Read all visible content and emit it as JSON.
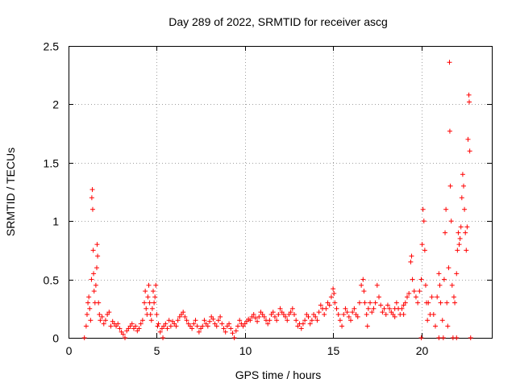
{
  "chart_data": {
    "type": "scatter",
    "title": "Day 289 of 2022, SRMTID for receiver ascg",
    "xlabel": "GPS time / hours",
    "ylabel": "SRMTID / TECUs",
    "xlim": [
      0,
      24
    ],
    "ylim": [
      0,
      2.5
    ],
    "xticks": [
      0,
      5,
      10,
      15,
      20
    ],
    "yticks": [
      0,
      0.5,
      1,
      1.5,
      2,
      2.5
    ],
    "xtick_labels": [
      "0",
      "5",
      "10",
      "15",
      "20"
    ],
    "ytick_labels": [
      "0",
      "0.5",
      "1",
      "1.5",
      "2",
      "2.5"
    ],
    "grid": true,
    "marker": "+",
    "color": "#ff0000",
    "series": [
      {
        "name": "SRMTID",
        "points": [
          [
            0.9,
            0.0
          ],
          [
            1.0,
            0.1
          ],
          [
            1.05,
            0.2
          ],
          [
            1.1,
            0.3
          ],
          [
            1.15,
            0.35
          ],
          [
            1.2,
            0.25
          ],
          [
            1.25,
            0.15
          ],
          [
            1.3,
            0.5
          ],
          [
            1.32,
            1.2
          ],
          [
            1.35,
            1.27
          ],
          [
            1.37,
            1.1
          ],
          [
            1.4,
            0.75
          ],
          [
            1.42,
            0.55
          ],
          [
            1.45,
            0.4
          ],
          [
            1.5,
            0.3
          ],
          [
            1.55,
            0.45
          ],
          [
            1.6,
            0.6
          ],
          [
            1.62,
            0.8
          ],
          [
            1.65,
            0.7
          ],
          [
            1.7,
            0.3
          ],
          [
            1.75,
            0.2
          ],
          [
            1.8,
            0.15
          ],
          [
            1.9,
            0.18
          ],
          [
            2.0,
            0.12
          ],
          [
            2.1,
            0.15
          ],
          [
            2.2,
            0.2
          ],
          [
            2.3,
            0.22
          ],
          [
            2.4,
            0.1
          ],
          [
            2.5,
            0.14
          ],
          [
            2.6,
            0.12
          ],
          [
            2.7,
            0.1
          ],
          [
            2.8,
            0.12
          ],
          [
            2.9,
            0.08
          ],
          [
            3.0,
            0.05
          ],
          [
            3.1,
            0.03
          ],
          [
            3.2,
            0.0
          ],
          [
            3.3,
            0.06
          ],
          [
            3.4,
            0.08
          ],
          [
            3.5,
            0.1
          ],
          [
            3.6,
            0.12
          ],
          [
            3.7,
            0.08
          ],
          [
            3.8,
            0.1
          ],
          [
            3.9,
            0.06
          ],
          [
            4.0,
            0.08
          ],
          [
            4.1,
            0.12
          ],
          [
            4.2,
            0.15
          ],
          [
            4.3,
            0.3
          ],
          [
            4.35,
            0.4
          ],
          [
            4.4,
            0.25
          ],
          [
            4.45,
            0.2
          ],
          [
            4.5,
            0.35
          ],
          [
            4.55,
            0.45
          ],
          [
            4.6,
            0.3
          ],
          [
            4.65,
            0.2
          ],
          [
            4.7,
            0.15
          ],
          [
            4.75,
            0.25
          ],
          [
            4.8,
            0.4
          ],
          [
            4.85,
            0.3
          ],
          [
            4.9,
            0.35
          ],
          [
            4.95,
            0.45
          ],
          [
            5.0,
            0.2
          ],
          [
            5.05,
            0.1
          ],
          [
            5.1,
            0.12
          ],
          [
            5.2,
            0.05
          ],
          [
            5.3,
            0.08
          ],
          [
            5.35,
            0.0
          ],
          [
            5.4,
            0.1
          ],
          [
            5.5,
            0.12
          ],
          [
            5.6,
            0.08
          ],
          [
            5.7,
            0.15
          ],
          [
            5.8,
            0.1
          ],
          [
            5.9,
            0.14
          ],
          [
            6.0,
            0.12
          ],
          [
            6.1,
            0.1
          ],
          [
            6.2,
            0.15
          ],
          [
            6.3,
            0.18
          ],
          [
            6.4,
            0.2
          ],
          [
            6.5,
            0.22
          ],
          [
            6.6,
            0.18
          ],
          [
            6.7,
            0.15
          ],
          [
            6.8,
            0.12
          ],
          [
            6.9,
            0.1
          ],
          [
            7.0,
            0.08
          ],
          [
            7.1,
            0.12
          ],
          [
            7.2,
            0.15
          ],
          [
            7.3,
            0.1
          ],
          [
            7.4,
            0.05
          ],
          [
            7.5,
            0.08
          ],
          [
            7.6,
            0.1
          ],
          [
            7.7,
            0.15
          ],
          [
            7.8,
            0.12
          ],
          [
            7.9,
            0.1
          ],
          [
            8.0,
            0.14
          ],
          [
            8.1,
            0.18
          ],
          [
            8.2,
            0.16
          ],
          [
            8.3,
            0.12
          ],
          [
            8.4,
            0.1
          ],
          [
            8.5,
            0.15
          ],
          [
            8.6,
            0.18
          ],
          [
            8.7,
            0.12
          ],
          [
            8.8,
            0.08
          ],
          [
            8.9,
            0.05
          ],
          [
            9.0,
            0.1
          ],
          [
            9.1,
            0.12
          ],
          [
            9.2,
            0.08
          ],
          [
            9.3,
            0.04
          ],
          [
            9.4,
            0.0
          ],
          [
            9.5,
            0.06
          ],
          [
            9.6,
            0.1
          ],
          [
            9.7,
            0.15
          ],
          [
            9.8,
            0.12
          ],
          [
            9.9,
            0.1
          ],
          [
            10.0,
            0.12
          ],
          [
            10.1,
            0.14
          ],
          [
            10.2,
            0.16
          ],
          [
            10.3,
            0.15
          ],
          [
            10.4,
            0.18
          ],
          [
            10.5,
            0.2
          ],
          [
            10.6,
            0.17
          ],
          [
            10.7,
            0.14
          ],
          [
            10.8,
            0.18
          ],
          [
            10.9,
            0.22
          ],
          [
            11.0,
            0.2
          ],
          [
            11.1,
            0.18
          ],
          [
            11.2,
            0.15
          ],
          [
            11.3,
            0.12
          ],
          [
            11.4,
            0.15
          ],
          [
            11.5,
            0.2
          ],
          [
            11.6,
            0.22
          ],
          [
            11.7,
            0.18
          ],
          [
            11.8,
            0.15
          ],
          [
            11.9,
            0.2
          ],
          [
            12.0,
            0.25
          ],
          [
            12.1,
            0.22
          ],
          [
            12.2,
            0.2
          ],
          [
            12.3,
            0.18
          ],
          [
            12.4,
            0.15
          ],
          [
            12.5,
            0.2
          ],
          [
            12.6,
            0.22
          ],
          [
            12.7,
            0.25
          ],
          [
            12.8,
            0.2
          ],
          [
            12.9,
            0.15
          ],
          [
            13.0,
            0.1
          ],
          [
            13.1,
            0.12
          ],
          [
            13.2,
            0.08
          ],
          [
            13.3,
            0.12
          ],
          [
            13.4,
            0.15
          ],
          [
            13.5,
            0.2
          ],
          [
            13.6,
            0.18
          ],
          [
            13.7,
            0.12
          ],
          [
            13.8,
            0.15
          ],
          [
            13.9,
            0.2
          ],
          [
            14.0,
            0.18
          ],
          [
            14.1,
            0.15
          ],
          [
            14.2,
            0.22
          ],
          [
            14.3,
            0.28
          ],
          [
            14.4,
            0.25
          ],
          [
            14.5,
            0.2
          ],
          [
            14.6,
            0.25
          ],
          [
            14.7,
            0.3
          ],
          [
            14.8,
            0.28
          ],
          [
            14.9,
            0.35
          ],
          [
            15.0,
            0.42
          ],
          [
            15.05,
            0.38
          ],
          [
            15.1,
            0.3
          ],
          [
            15.2,
            0.25
          ],
          [
            15.3,
            0.2
          ],
          [
            15.4,
            0.15
          ],
          [
            15.5,
            0.1
          ],
          [
            15.6,
            0.2
          ],
          [
            15.7,
            0.25
          ],
          [
            15.8,
            0.22
          ],
          [
            15.9,
            0.18
          ],
          [
            16.0,
            0.15
          ],
          [
            16.1,
            0.22
          ],
          [
            16.2,
            0.25
          ],
          [
            16.3,
            0.2
          ],
          [
            16.4,
            0.18
          ],
          [
            16.5,
            0.3
          ],
          [
            16.6,
            0.45
          ],
          [
            16.7,
            0.5
          ],
          [
            16.75,
            0.4
          ],
          [
            16.8,
            0.3
          ],
          [
            16.9,
            0.2
          ],
          [
            16.95,
            0.1
          ],
          [
            17.0,
            0.25
          ],
          [
            17.1,
            0.3
          ],
          [
            17.2,
            0.22
          ],
          [
            17.3,
            0.25
          ],
          [
            17.4,
            0.3
          ],
          [
            17.5,
            0.45
          ],
          [
            17.6,
            0.35
          ],
          [
            17.7,
            0.28
          ],
          [
            17.8,
            0.22
          ],
          [
            17.9,
            0.25
          ],
          [
            18.0,
            0.2
          ],
          [
            18.1,
            0.28
          ],
          [
            18.2,
            0.25
          ],
          [
            18.3,
            0.22
          ],
          [
            18.4,
            0.2
          ],
          [
            18.5,
            0.25
          ],
          [
            18.6,
            0.3
          ],
          [
            18.7,
            0.25
          ],
          [
            18.8,
            0.2
          ],
          [
            18.9,
            0.25
          ],
          [
            19.0,
            0.28
          ],
          [
            19.1,
            0.3
          ],
          [
            19.2,
            0.35
          ],
          [
            19.3,
            0.38
          ],
          [
            19.4,
            0.65
          ],
          [
            19.45,
            0.7
          ],
          [
            19.5,
            0.5
          ],
          [
            19.6,
            0.4
          ],
          [
            19.7,
            0.35
          ],
          [
            19.8,
            0.3
          ],
          [
            19.9,
            0.4
          ],
          [
            20.0,
            0.5
          ],
          [
            20.05,
            0.8
          ],
          [
            20.1,
            1.1
          ],
          [
            20.15,
            1.0
          ],
          [
            20.2,
            0.75
          ],
          [
            20.25,
            0.45
          ],
          [
            20.3,
            0.3
          ],
          [
            20.35,
            0.15
          ],
          [
            20.4,
            0.3
          ],
          [
            20.5,
            0.2
          ],
          [
            20.6,
            0.35
          ],
          [
            20.7,
            0.2
          ],
          [
            20.8,
            0.1
          ],
          [
            20.9,
            0.35
          ],
          [
            21.0,
            0.55
          ],
          [
            21.05,
            0.45
          ],
          [
            21.1,
            0.3
          ],
          [
            21.2,
            0.15
          ],
          [
            21.25,
            0.0
          ],
          [
            21.3,
            0.5
          ],
          [
            21.35,
            0.9
          ],
          [
            21.4,
            1.1
          ],
          [
            21.45,
            0.3
          ],
          [
            21.5,
            0.1
          ],
          [
            21.55,
            0.6
          ],
          [
            21.6,
            2.36
          ],
          [
            21.62,
            1.77
          ],
          [
            21.65,
            1.3
          ],
          [
            21.7,
            1.0
          ],
          [
            21.75,
            0.45
          ],
          [
            21.8,
            0.0
          ],
          [
            21.85,
            0.35
          ],
          [
            21.9,
            0.3
          ],
          [
            22.0,
            0.55
          ],
          [
            22.05,
            0.75
          ],
          [
            22.1,
            0.9
          ],
          [
            22.15,
            0.8
          ],
          [
            22.2,
            0.85
          ],
          [
            22.25,
            0.95
          ],
          [
            22.3,
            1.2
          ],
          [
            22.35,
            1.4
          ],
          [
            22.4,
            1.3
          ],
          [
            22.45,
            1.1
          ],
          [
            22.5,
            0.9
          ],
          [
            22.55,
            0.75
          ],
          [
            22.6,
            0.95
          ],
          [
            22.65,
            1.7
          ],
          [
            22.7,
            2.08
          ],
          [
            22.72,
            2.02
          ],
          [
            22.75,
            1.6
          ],
          [
            22.8,
            0.0
          ],
          [
            22.0,
            0.0
          ],
          [
            21.0,
            0.0
          ],
          [
            20.0,
            0.0
          ],
          [
            19.0,
            0.2
          ],
          [
            18.5,
            0.18
          ]
        ]
      }
    ]
  }
}
